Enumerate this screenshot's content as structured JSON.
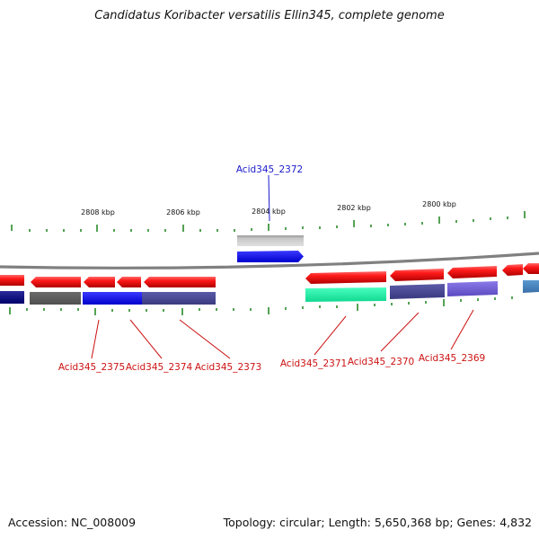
{
  "title": "Candidatus Koribacter versatilis Ellin345, complete genome",
  "footer": {
    "accession": "Accession: NC_008009",
    "topology": "Topology: circular; Length: 5,650,368 bp; Genes: 4,832"
  },
  "scale_labels": [
    "2808 kbp",
    "2806 kbp",
    "2804 kbp",
    "2802 kbp",
    "2800 kbp"
  ],
  "gene_labels": [
    {
      "text": "Acid345_2372",
      "color": "#1a1acc"
    },
    {
      "text": "Acid345_2375",
      "color": "#cc1111"
    },
    {
      "text": "Acid345_2374",
      "color": "#cc1111"
    },
    {
      "text": "Acid345_2373",
      "color": "#cc1111"
    },
    {
      "text": "Acid345_2371",
      "color": "#cc1111"
    },
    {
      "text": "Acid345_2370",
      "color": "#cc1111"
    },
    {
      "text": "Acid345_2369",
      "color": "#cc1111"
    }
  ],
  "colors": {
    "backbone": "#808080",
    "strand_arrow": "#ee1111",
    "tick": "#2a8a2a",
    "label_red": "#cc1111",
    "label_blue": "#1a1acc"
  }
}
